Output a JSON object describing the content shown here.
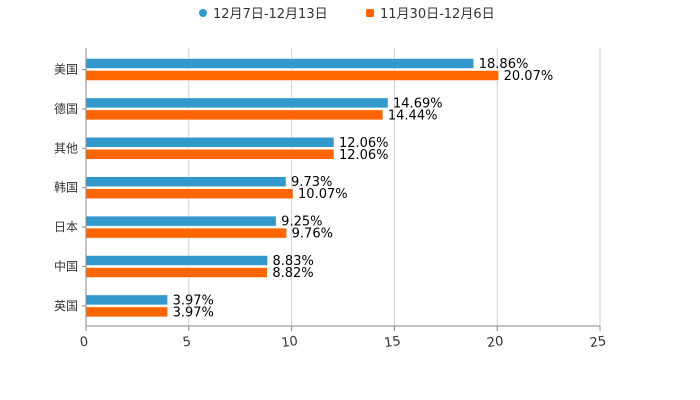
{
  "chart_data": {
    "type": "bar",
    "orientation": "horizontal",
    "title": "",
    "xlabel": "",
    "ylabel": "",
    "xlim": [
      0,
      25
    ],
    "x_ticks": [
      0,
      5,
      10,
      15,
      20,
      25
    ],
    "x_tick_labels": [
      "0",
      "5",
      "10",
      "15",
      "20",
      "25"
    ],
    "grid": true,
    "legend_position": "top-center",
    "categories": [
      "美国",
      "德国",
      "其他",
      "韩国",
      "日本",
      "中国",
      "英国"
    ],
    "series": [
      {
        "name": "12月7日-12月13日",
        "color": "#3399cc",
        "values": [
          18.86,
          14.69,
          12.06,
          9.73,
          9.25,
          8.83,
          3.97
        ],
        "labels": [
          "18.86%",
          "14.69%",
          "12.06%",
          "9.73%",
          "9.25%",
          "8.83%",
          "3.97%"
        ]
      },
      {
        "name": "11月30日-12月6日",
        "color": "#ff6600",
        "values": [
          20.07,
          14.44,
          12.06,
          10.07,
          9.76,
          8.82,
          3.97
        ],
        "labels": [
          "20.07%",
          "14.44%",
          "12.06%",
          "10.07%",
          "9.76%",
          "8.82%",
          "3.97%"
        ]
      }
    ]
  }
}
